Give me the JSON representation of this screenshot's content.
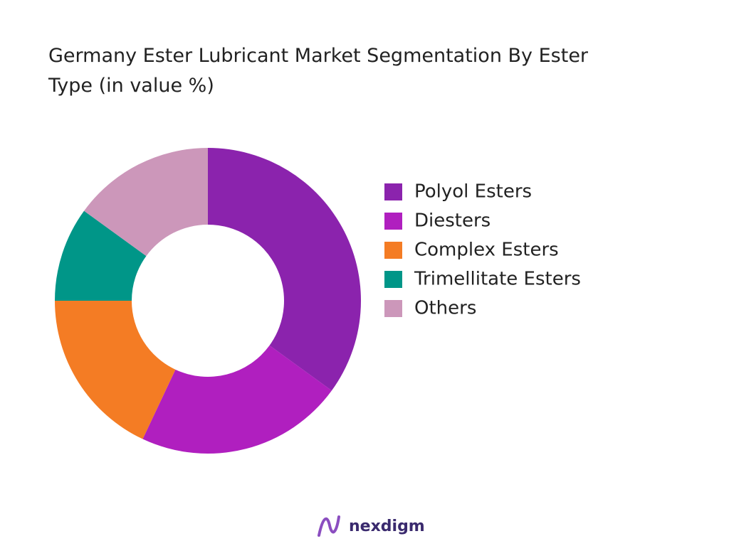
{
  "chart_data": {
    "type": "donut",
    "title": "Germany Ester Lubricant Market Segmentation By Ester Type (in value %)",
    "categories": [
      "Polyol Esters",
      "Diesters",
      "Complex Esters",
      "Trimellitate Esters",
      "Others"
    ],
    "values": [
      35,
      22,
      18,
      10,
      15
    ],
    "colors": [
      "#8b23ad",
      "#b01fbf",
      "#f47c24",
      "#009688",
      "#cc97ba"
    ],
    "legend": "right"
  },
  "footer": {
    "brand": "nexdigm"
  }
}
